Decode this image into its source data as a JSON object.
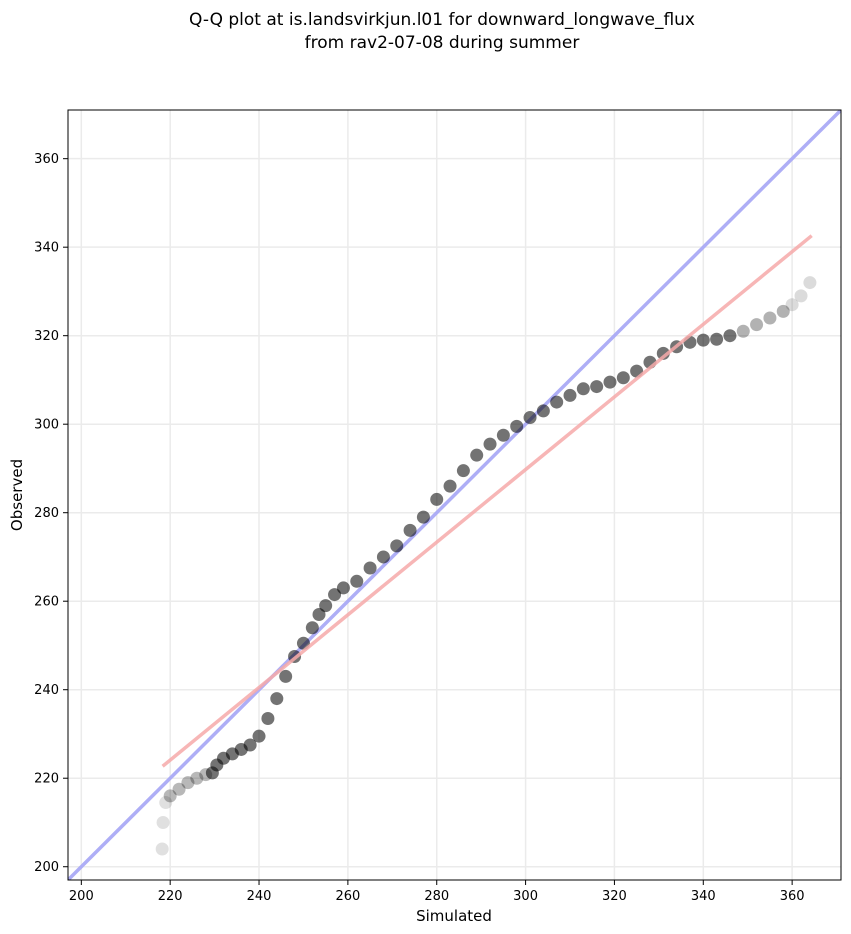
{
  "chart_data": {
    "type": "scatter",
    "title_line1": "Q-Q plot at is.landsvirkjun.l01 for downward_longwave_flux",
    "title_line2": "from rav2-07-08 during summer",
    "xlabel": "Simulated",
    "ylabel": "Observed",
    "xlim": [
      197,
      371
    ],
    "ylim": [
      197,
      371
    ],
    "xticks": [
      "200",
      "220",
      "240",
      "260",
      "280",
      "300",
      "320",
      "340",
      "360"
    ],
    "yticks": [
      "200",
      "220",
      "240",
      "260",
      "280",
      "300",
      "320",
      "340",
      "360"
    ],
    "grid": true,
    "reference_line": {
      "color": "#aaaaf5",
      "from": [
        197,
        197
      ],
      "to": [
        371,
        371
      ]
    },
    "fit_line": {
      "color": "#f5aaaa",
      "from": [
        218.3,
        222.7
      ],
      "to": [
        364.4,
        342.6
      ]
    },
    "point_color": "#000000",
    "quantile_curve": [
      [
        218.2,
        204
      ],
      [
        218.4,
        210
      ],
      [
        219.0,
        214.5
      ],
      [
        220.0,
        216
      ],
      [
        222,
        217.5
      ],
      [
        224,
        219
      ],
      [
        226,
        220
      ],
      [
        228,
        220.8
      ],
      [
        229.5,
        221.2
      ],
      [
        230.5,
        223
      ],
      [
        232,
        224.5
      ],
      [
        234,
        225.5
      ],
      [
        236,
        226.5
      ],
      [
        238,
        227.5
      ],
      [
        240,
        229.5
      ],
      [
        242,
        233.5
      ],
      [
        244,
        238
      ],
      [
        246,
        243
      ],
      [
        248,
        247.5
      ],
      [
        250,
        250.5
      ],
      [
        252,
        254
      ],
      [
        253.5,
        257
      ],
      [
        255,
        259
      ],
      [
        257,
        261.5
      ],
      [
        259,
        263
      ],
      [
        262,
        264.5
      ],
      [
        265,
        267.5
      ],
      [
        268,
        270
      ],
      [
        271,
        272.5
      ],
      [
        274,
        276
      ],
      [
        277,
        279
      ],
      [
        280,
        283
      ],
      [
        283,
        286
      ],
      [
        286,
        289.5
      ],
      [
        289,
        293
      ],
      [
        292,
        295.5
      ],
      [
        295,
        297.5
      ],
      [
        298,
        299.5
      ],
      [
        301,
        301.5
      ],
      [
        304,
        303
      ],
      [
        307,
        305
      ],
      [
        310,
        306.5
      ],
      [
        313,
        308
      ],
      [
        316,
        308.5
      ],
      [
        319,
        309.5
      ],
      [
        322,
        310.5
      ],
      [
        325,
        312
      ],
      [
        328,
        314
      ],
      [
        331,
        316
      ],
      [
        334,
        317.5
      ],
      [
        337,
        318.5
      ],
      [
        340,
        319
      ],
      [
        343,
        319.2
      ],
      [
        346,
        320
      ],
      [
        349,
        321
      ],
      [
        352,
        322.5
      ],
      [
        355,
        324
      ],
      [
        358,
        325.5
      ],
      [
        360,
        327
      ],
      [
        362,
        329
      ],
      [
        364,
        332
      ]
    ]
  }
}
